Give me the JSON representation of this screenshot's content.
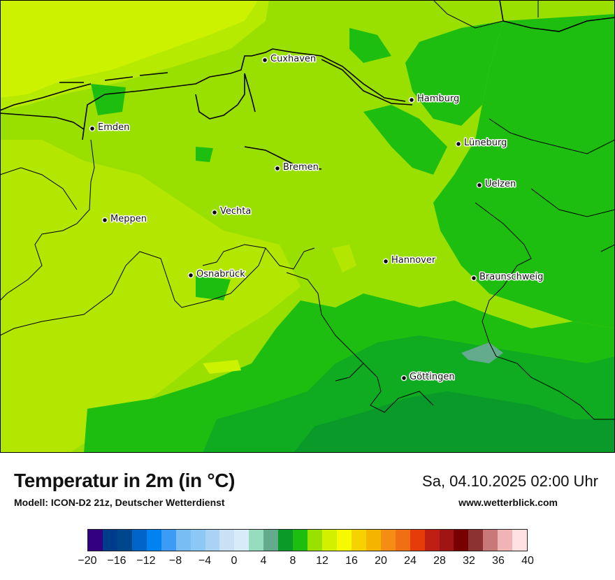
{
  "header": {
    "title": "Temperatur in 2m (in °C)",
    "subtitle": "Modell: ICON-D2 21z, Deutscher Wetterdienst",
    "datetime": "Sa, 04.10.2025 02:00 Uhr",
    "website": "www.wetterblick.com"
  },
  "cities": [
    {
      "name": "Cuxhaven"
    },
    {
      "name": "Hamburg"
    },
    {
      "name": "Emden"
    },
    {
      "name": "Lüneburg"
    },
    {
      "name": "Bremen"
    },
    {
      "name": "Uelzen"
    },
    {
      "name": "Vechta"
    },
    {
      "name": "Meppen"
    },
    {
      "name": "Hannover"
    },
    {
      "name": "Osnabrück"
    },
    {
      "name": "Braunschweig"
    },
    {
      "name": "Göttingen"
    }
  ],
  "legend": {
    "ticks": [
      "−20",
      "−16",
      "−12",
      "−8",
      "−4",
      "0",
      "4",
      "8",
      "12",
      "16",
      "20",
      "24",
      "28",
      "32",
      "36",
      "40"
    ],
    "min": -20,
    "max": 40,
    "colors": [
      "#320080",
      "#003c8c",
      "#00468c",
      "#0064c8",
      "#0082f0",
      "#3c9bf5",
      "#78bef5",
      "#8cc8f5",
      "#aad2f5",
      "#c8e1f5",
      "#d7ebf8",
      "#96dcbe",
      "#64aa8c",
      "#0a9a2a",
      "#1ebe10",
      "#9be100",
      "#d2f000",
      "#f5fa00",
      "#f5d200",
      "#f5b400",
      "#f58c14",
      "#f06e14",
      "#e63c0a",
      "#be1e14",
      "#a01414",
      "#780000",
      "#8c3232",
      "#c87878",
      "#f0b4b4",
      "#ffe1e1"
    ]
  }
}
